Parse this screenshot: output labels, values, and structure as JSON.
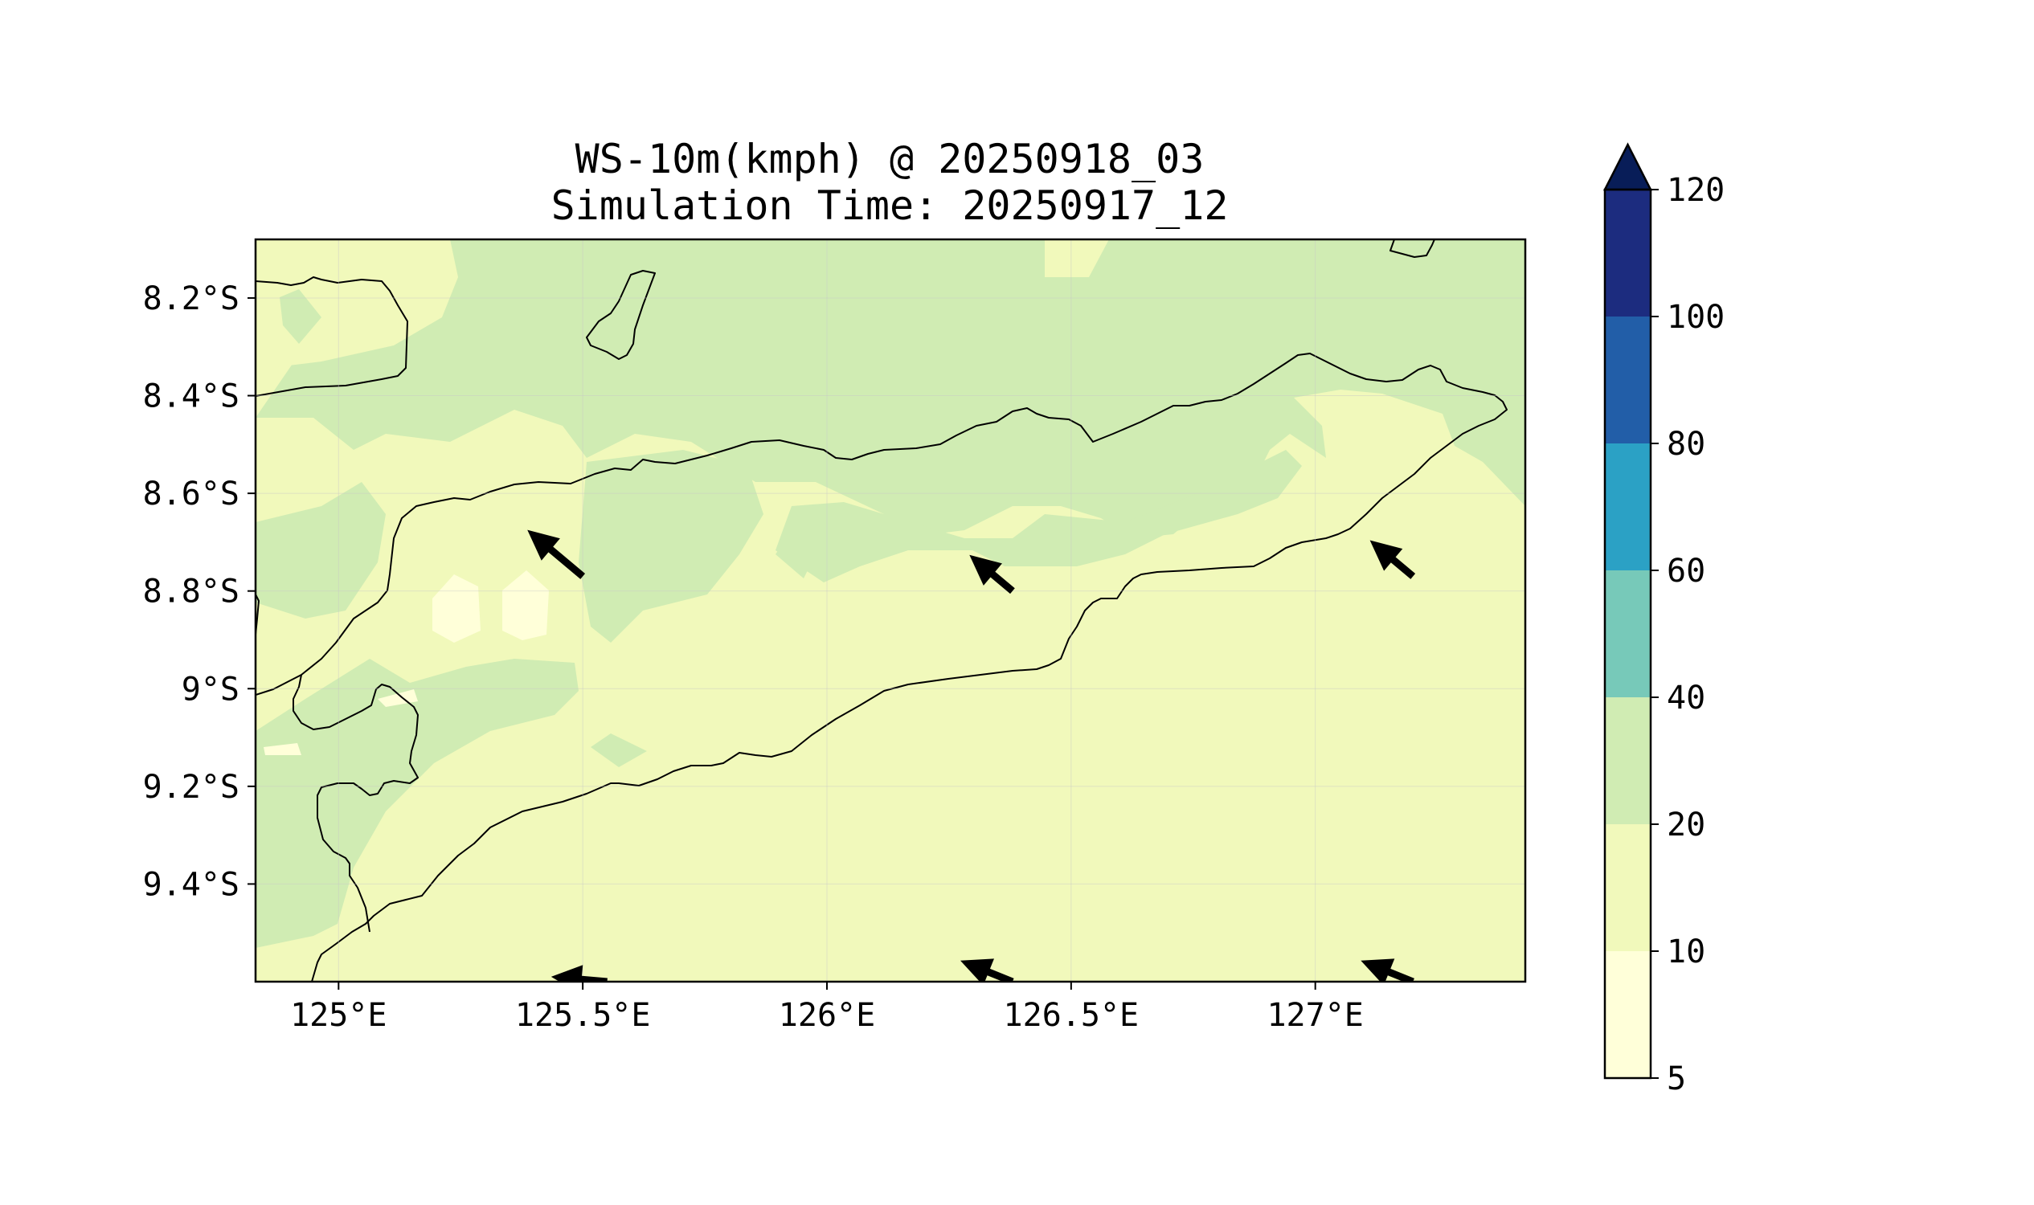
{
  "title": {
    "line1": "WS-10m(kmph) @ 20250918_03",
    "line2": "Simulation Time: 20250917_12"
  },
  "map": {
    "lon_range": [
      124.83,
      127.43
    ],
    "lat_range": [
      -9.6,
      -8.08
    ],
    "lon_ticks": [
      {
        "value": 125.0,
        "label": "125°E"
      },
      {
        "value": 125.5,
        "label": "125.5°E"
      },
      {
        "value": 126.0,
        "label": "126°E"
      },
      {
        "value": 126.5,
        "label": "126.5°E"
      },
      {
        "value": 127.0,
        "label": "127°E"
      }
    ],
    "lat_ticks": [
      {
        "value": -8.2,
        "label": "8.2°S"
      },
      {
        "value": -8.4,
        "label": "8.4°S"
      },
      {
        "value": -8.6,
        "label": "8.6°S"
      },
      {
        "value": -8.8,
        "label": "8.8°S"
      },
      {
        "value": -9.0,
        "label": "9°S"
      },
      {
        "value": -9.2,
        "label": "9.2°S"
      },
      {
        "value": -9.4,
        "label": "9.4°S"
      }
    ],
    "grid": true
  },
  "colorbar": {
    "levels": [
      5,
      10,
      20,
      40,
      60,
      80,
      100,
      120
    ],
    "labels": [
      "5",
      "10",
      "20",
      "40",
      "60",
      "80",
      "100",
      "120"
    ],
    "colors": [
      "#ffffd9",
      "#f1f9bb",
      "#d0ecb3",
      "#77c9b9",
      "#2ba1c5",
      "#225ea8",
      "#1c2c7f",
      "#081d58"
    ],
    "extend": "max"
  },
  "wind_vectors": [
    {
      "lon": 125.5,
      "lat": -8.77,
      "direction": "NW",
      "strength": "strong"
    },
    {
      "lon": 126.38,
      "lat": -8.8,
      "direction": "NW",
      "strength": "medium"
    },
    {
      "lon": 127.2,
      "lat": -8.77,
      "direction": "NW",
      "strength": "medium"
    },
    {
      "lon": 125.55,
      "lat": -9.6,
      "direction": "W",
      "strength": "medium"
    },
    {
      "lon": 126.38,
      "lat": -9.6,
      "direction": "WNW",
      "strength": "medium"
    },
    {
      "lon": 127.2,
      "lat": -9.6,
      "direction": "WNW",
      "strength": "medium"
    }
  ]
}
